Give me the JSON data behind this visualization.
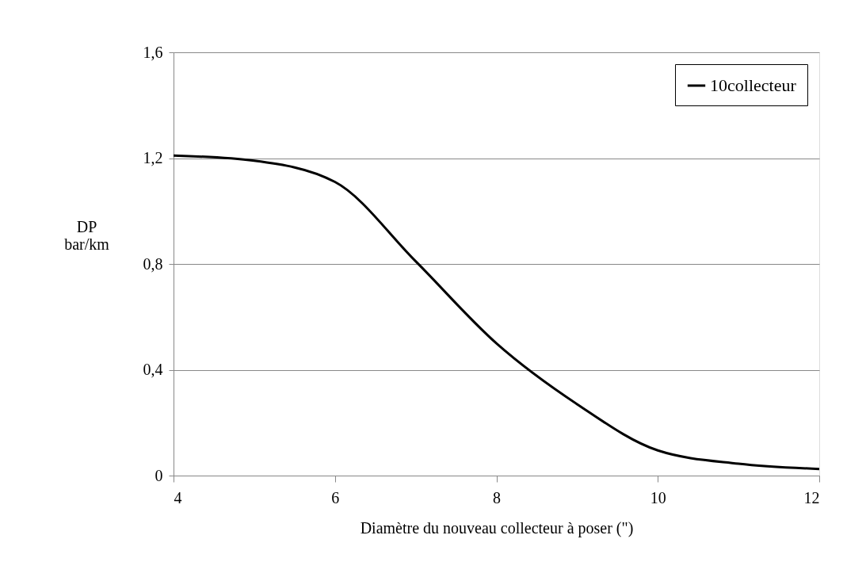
{
  "chart_data": {
    "type": "line",
    "xlabel": "Diamètre du nouveau collecteur à poser (\")",
    "ylabel": "DP\nbar/km",
    "x": [
      4,
      5,
      6,
      7,
      8,
      9,
      10,
      11,
      12
    ],
    "series": [
      {
        "name": "10collecteur",
        "color": "#000000",
        "values": [
          1.21,
          1.19,
          1.11,
          0.81,
          0.5,
          0.27,
          0.095,
          0.045,
          0.025
        ]
      }
    ],
    "xlim": [
      4,
      12
    ],
    "xticks": [
      4,
      6,
      8,
      10,
      12
    ],
    "ylim": [
      0,
      1.6
    ],
    "yticks": [
      {
        "value": 0,
        "label": "0"
      },
      {
        "value": 0.4,
        "label": "0,4"
      },
      {
        "value": 0.8,
        "label": "0,8"
      },
      {
        "value": 1.2,
        "label": "1,2"
      },
      {
        "value": 1.6,
        "label": "1,6"
      }
    ],
    "grid": "y",
    "legend": "top right",
    "marker": "none",
    "line_style": "solid"
  }
}
